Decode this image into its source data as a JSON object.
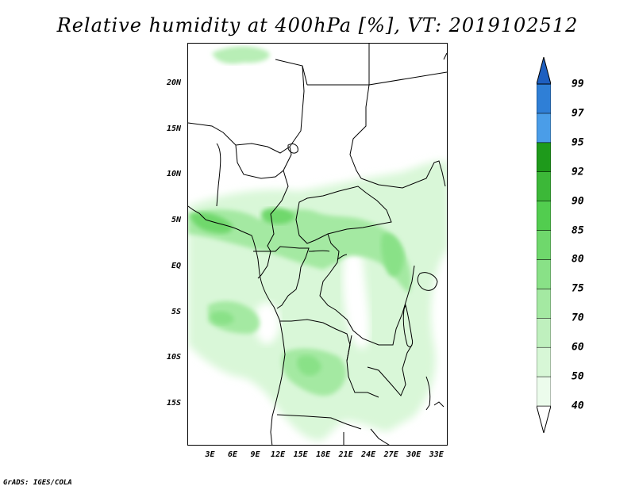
{
  "title": "Relative humidity at 400hPa [%], VT: 2019102512",
  "credit": "GrADS: IGES/COLA",
  "map": {
    "lon_range": [
      0,
      34.5
    ],
    "lat_range": [
      -19.5,
      24.5
    ],
    "lat_ticks": [
      {
        "value": 20,
        "label": "20N"
      },
      {
        "value": 15,
        "label": "15N"
      },
      {
        "value": 10,
        "label": "10N"
      },
      {
        "value": 5,
        "label": "5N"
      },
      {
        "value": 0,
        "label": "EQ"
      },
      {
        "value": -5,
        "label": "5S"
      },
      {
        "value": -10,
        "label": "10S"
      },
      {
        "value": -15,
        "label": "15S"
      }
    ],
    "lon_ticks": [
      {
        "value": 3,
        "label": "3E"
      },
      {
        "value": 6,
        "label": "6E"
      },
      {
        "value": 9,
        "label": "9E"
      },
      {
        "value": 12,
        "label": "12E"
      },
      {
        "value": 15,
        "label": "15E"
      },
      {
        "value": 18,
        "label": "18E"
      },
      {
        "value": 21,
        "label": "21E"
      },
      {
        "value": 24,
        "label": "24E"
      },
      {
        "value": 27,
        "label": "27E"
      },
      {
        "value": 30,
        "label": "30E"
      },
      {
        "value": 33,
        "label": "33E"
      }
    ]
  },
  "colorbar": {
    "levels": [
      "40",
      "50",
      "60",
      "70",
      "75",
      "80",
      "85",
      "90",
      "92",
      "95",
      "97",
      "99"
    ],
    "colors": [
      "#ecfcec",
      "#d7f7d6",
      "#bff0be",
      "#a4e9a2",
      "#89e187",
      "#6fd86c",
      "#52cd4f",
      "#3cb838",
      "#1e9a1b",
      "#4a9de8",
      "#2f7fd6",
      "#1e5fc0"
    ],
    "under_color": "#ffffff",
    "over_color": "#1e5fc0"
  }
}
